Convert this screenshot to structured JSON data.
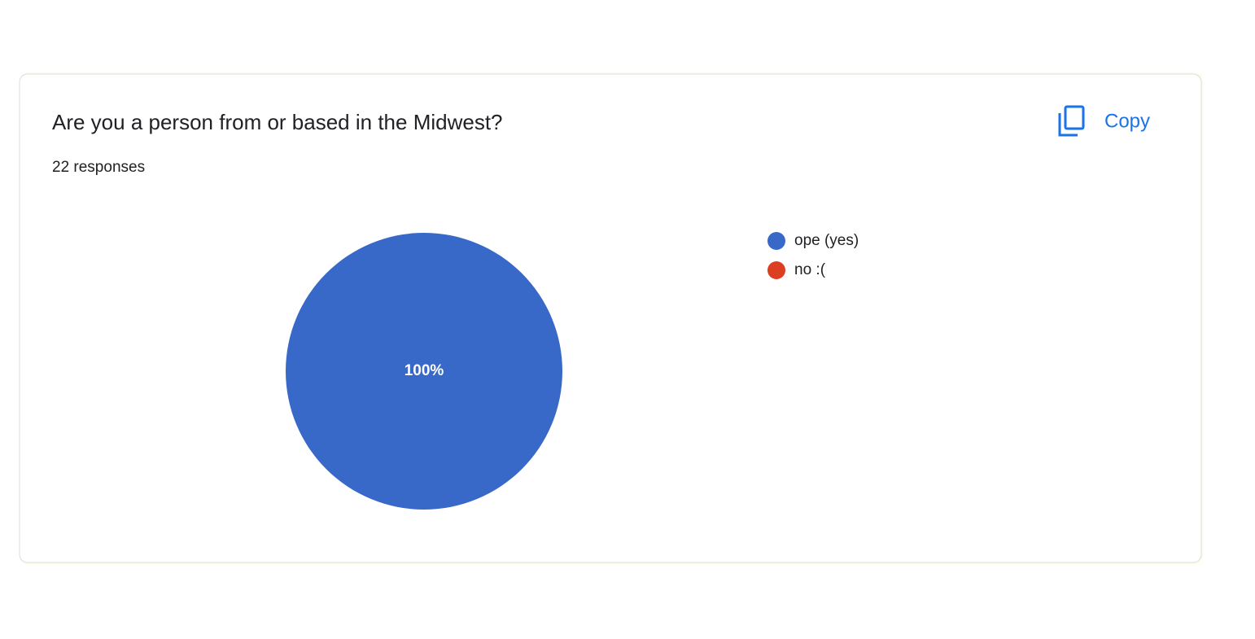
{
  "header": {
    "title": "Are you a person from or based in the Midwest?",
    "responses": "22 responses",
    "copy": "Copy"
  },
  "chart_data": {
    "type": "pie",
    "categories": [
      "ope (yes)",
      "no :("
    ],
    "values": [
      100,
      0
    ],
    "value_labels": [
      "100%",
      null
    ],
    "colors": [
      "#3869c9",
      "#dc3e22"
    ]
  }
}
